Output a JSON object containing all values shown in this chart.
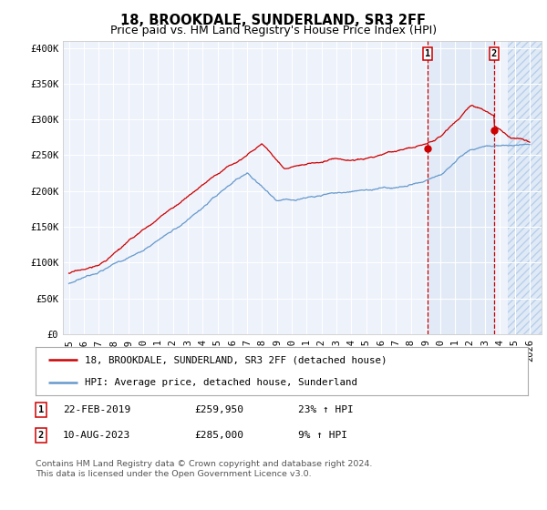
{
  "title": "18, BROOKDALE, SUNDERLAND, SR3 2FF",
  "subtitle": "Price paid vs. HM Land Registry's House Price Index (HPI)",
  "ylabel_ticks": [
    "£0",
    "£50K",
    "£100K",
    "£150K",
    "£200K",
    "£250K",
    "£300K",
    "£350K",
    "£400K"
  ],
  "ytick_vals": [
    0,
    50000,
    100000,
    150000,
    200000,
    250000,
    300000,
    350000,
    400000
  ],
  "ylim": [
    0,
    410000
  ],
  "xlim_start": 1994.6,
  "xlim_end": 2026.8,
  "xtick_years": [
    1995,
    1996,
    1997,
    1998,
    1999,
    2000,
    2001,
    2002,
    2003,
    2004,
    2005,
    2006,
    2007,
    2008,
    2009,
    2010,
    2011,
    2012,
    2013,
    2014,
    2015,
    2016,
    2017,
    2018,
    2019,
    2020,
    2021,
    2022,
    2023,
    2024,
    2025,
    2026
  ],
  "red_line_color": "#cc0000",
  "blue_line_color": "#6699cc",
  "fill_color": "#dce8f5",
  "vline1_x": 2019.13,
  "vline2_x": 2023.61,
  "vline_color": "#cc0000",
  "sale1_price": 259950,
  "sale2_price": 285000,
  "annotation1": {
    "num": "1",
    "date": "22-FEB-2019",
    "price": "£259,950",
    "pct": "23% ↑ HPI"
  },
  "annotation2": {
    "num": "2",
    "date": "10-AUG-2023",
    "price": "£285,000",
    "pct": "9% ↑ HPI"
  },
  "legend_red": "18, BROOKDALE, SUNDERLAND, SR3 2FF (detached house)",
  "legend_blue": "HPI: Average price, detached house, Sunderland",
  "footer": "Contains HM Land Registry data © Crown copyright and database right 2024.\nThis data is licensed under the Open Government Licence v3.0.",
  "background_color": "#ffffff",
  "plot_bg_color": "#eef2fb",
  "grid_color": "#ffffff",
  "hatch_start": 2024.5,
  "title_fontsize": 10.5,
  "subtitle_fontsize": 9,
  "tick_fontsize": 7.5
}
